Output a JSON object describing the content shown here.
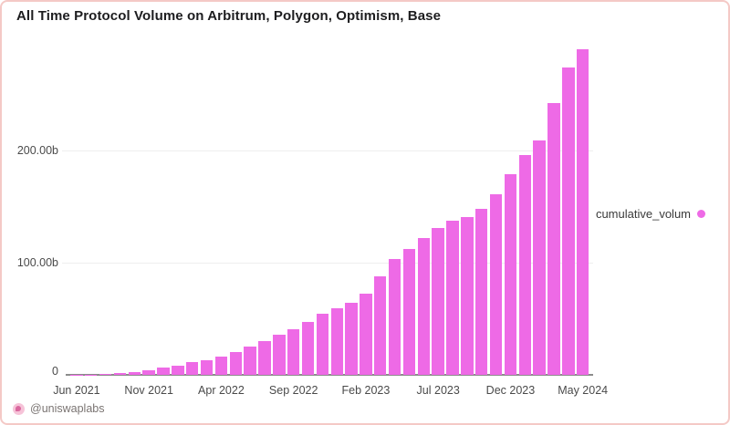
{
  "title": "All Time Protocol Volume on Arbitrum, Polygon, Optimism, Base",
  "legend": {
    "label": "cumulative_volum",
    "dot_color": "#ee6ae6"
  },
  "footer": {
    "handle": "@uniswaplabs",
    "icon": "uniswap-avatar-icon"
  },
  "frame": {
    "background": "#ffffff",
    "border_color": "#f4c9c6"
  },
  "chart_data": {
    "type": "bar",
    "title": "All Time Protocol Volume on Arbitrum, Polygon, Optimism, Base",
    "series_name": "cumulative_volum",
    "bar_color": "#ee6ae6",
    "unit": "USD billions, cumulative",
    "x": [
      "Jun 2021",
      "Jul 2021",
      "Aug 2021",
      "Sep 2021",
      "Oct 2021",
      "Nov 2021",
      "Dec 2021",
      "Jan 2022",
      "Feb 2022",
      "Mar 2022",
      "Apr 2022",
      "May 2022",
      "Jun 2022",
      "Jul 2022",
      "Aug 2022",
      "Sep 2022",
      "Oct 2022",
      "Nov 2022",
      "Dec 2022",
      "Jan 2023",
      "Feb 2023",
      "Mar 2023",
      "Apr 2023",
      "May 2023",
      "Jun 2023",
      "Jul 2023",
      "Aug 2023",
      "Sep 2023",
      "Oct 2023",
      "Nov 2023",
      "Dec 2023",
      "Jan 2024",
      "Feb 2024",
      "Mar 2024",
      "Apr 2024",
      "May 2024"
    ],
    "values": [
      0.1,
      0.3,
      0.7,
      1.3,
      2.4,
      4,
      6.4,
      8.5,
      11,
      13,
      16,
      20,
      25,
      30,
      36,
      41,
      47,
      54.5,
      59,
      64,
      72,
      88,
      103,
      112,
      122,
      131,
      137,
      141,
      148,
      161,
      179,
      196,
      209,
      242,
      274,
      290
    ],
    "yticks": [
      {
        "label": "0",
        "value": 0
      },
      {
        "label": "100.00b",
        "value": 100
      },
      {
        "label": "200.00b",
        "value": 200
      }
    ],
    "xtick_labels": [
      "Jun 2021",
      "Nov 2021",
      "Apr 2022",
      "Sep 2022",
      "Feb 2023",
      "Jul 2023",
      "Dec 2023",
      "May 2024"
    ],
    "xtick_every": 5,
    "ylim": [
      0,
      300
    ],
    "grid": "horizontal",
    "legend_position": "right"
  }
}
